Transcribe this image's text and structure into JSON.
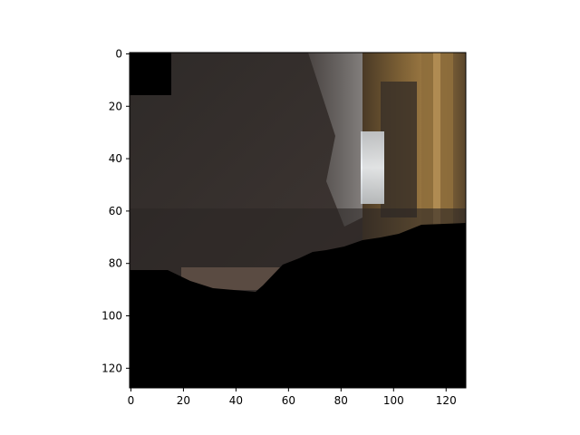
{
  "figure": {
    "background": "#ffffff",
    "axis_color": "#000000"
  },
  "image_axes": {
    "x_ticks": [
      "0",
      "20",
      "40",
      "60",
      "80",
      "100",
      "120"
    ],
    "y_ticks": [
      "0",
      "20",
      "40",
      "60",
      "80",
      "100",
      "120"
    ],
    "xlim": [
      -0.5,
      127.5
    ],
    "ylim": [
      127.5,
      -0.5
    ],
    "origin": "upper"
  },
  "image_content": {
    "description_colors": {
      "dark_gray_wall": "#3a3330",
      "curtain_gray": "#6e6a68",
      "window_light": "#e8eef2",
      "wood_gold": "#8a6a3a",
      "masked_black": "#000000"
    }
  }
}
